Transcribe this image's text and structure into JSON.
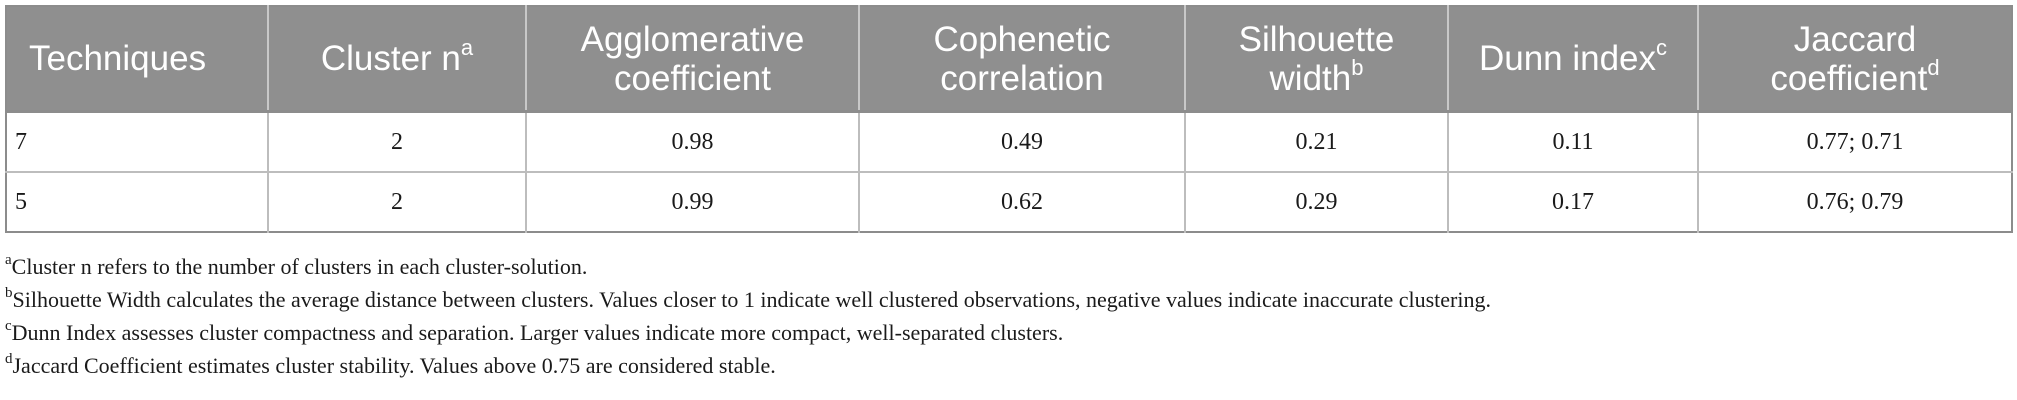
{
  "table": {
    "headers": [
      {
        "text": "Techniques",
        "sup": ""
      },
      {
        "text": "Cluster n",
        "sup": "a"
      },
      {
        "text": "Agglomerative coefficient",
        "sup": ""
      },
      {
        "text": "Cophenetic correlation",
        "sup": ""
      },
      {
        "text": "Silhouette width",
        "sup": "b"
      },
      {
        "text": "Dunn index",
        "sup": "c"
      },
      {
        "text": "Jaccard coefficient",
        "sup": "d"
      }
    ],
    "rows": [
      [
        "7",
        "2",
        "0.98",
        "0.49",
        "0.21",
        "0.11",
        "0.77; 0.71"
      ],
      [
        "5",
        "2",
        "0.99",
        "0.62",
        "0.29",
        "0.17",
        "0.76; 0.79"
      ]
    ]
  },
  "footnotes": [
    {
      "mark": "a",
      "text": "Cluster n refers to the number of clusters in each cluster-solution."
    },
    {
      "mark": "b",
      "text": "Silhouette Width calculates the average distance between clusters. Values closer to 1 indicate well clustered observations, negative values indicate inaccurate clustering."
    },
    {
      "mark": "c",
      "text": "Dunn Index assesses cluster compactness and separation. Larger values indicate more compact, well-separated clusters."
    },
    {
      "mark": "d",
      "text": "Jaccard Coefficient estimates cluster stability. Values above 0.75 are considered stable."
    }
  ]
}
